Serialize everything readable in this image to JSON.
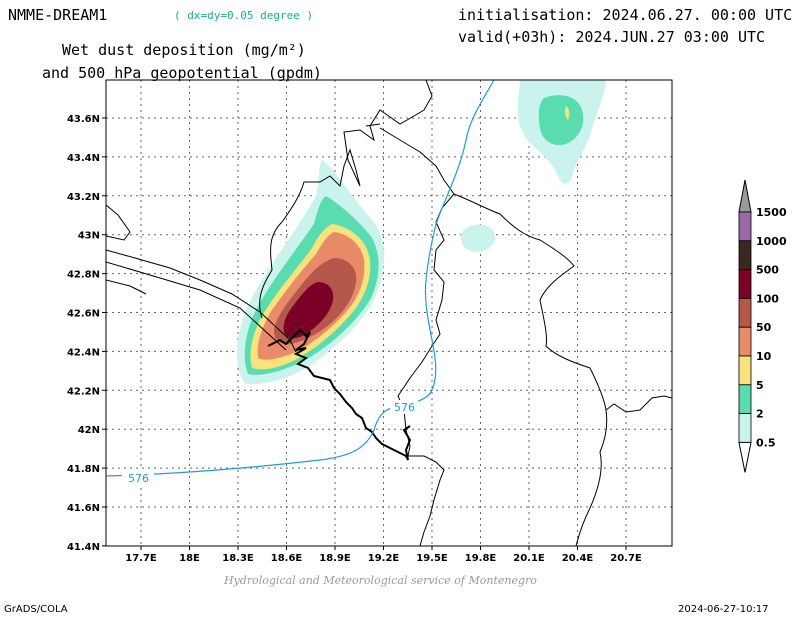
{
  "header": {
    "model": "NMME-DREAM1",
    "resolution": "( dx=dy=0.05 degree )",
    "initialisation": "initialisation: 2024.06.27. 00:00 UTC",
    "valid": "valid(+03h): 2024.JUN.27 03:00 UTC",
    "title_line1": "Wet dust deposition (mg/m²)",
    "title_line2": "and 500 hPa geopotential (gpdm)"
  },
  "map": {
    "x_ticks": [
      "17.7E",
      "18E",
      "18.3E",
      "18.6E",
      "18.9E",
      "19.2E",
      "19.5E",
      "19.8E",
      "20.1E",
      "20.4E",
      "20.7E"
    ],
    "y_ticks": [
      "43.6N",
      "43.4N",
      "43.2N",
      "43N",
      "42.8N",
      "42.6N",
      "42.4N",
      "42.2N",
      "42N",
      "41.8N",
      "41.6N",
      "41.4N"
    ],
    "contour_label": "576",
    "contour_color": "#1e9be0"
  },
  "legend": {
    "levels": [
      "1500",
      "1000",
      "500",
      "100",
      "50",
      "10",
      "5",
      "2",
      "0.5"
    ],
    "colors": [
      "#9a9a9a",
      "#9b6aa6",
      "#3a2a1e",
      "#7a0028",
      "#b5574a",
      "#e98a68",
      "#f7e27c",
      "#58dcb0",
      "#c9f3ec"
    ]
  },
  "footer": {
    "credit": "Hydrological and Meteorological service of Montenegro",
    "software": "GrADS/COLA",
    "timestamp": "2024-06-27-10:17"
  }
}
